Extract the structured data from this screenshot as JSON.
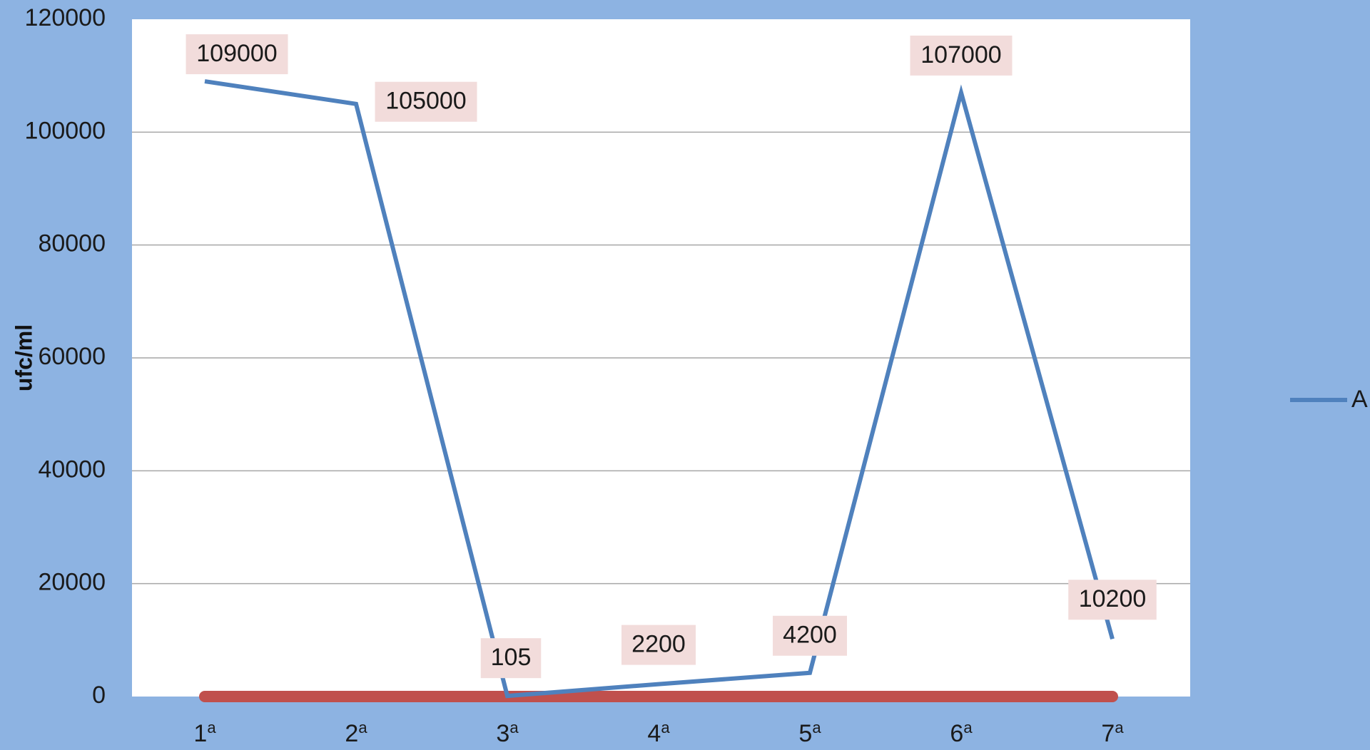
{
  "chart_data": {
    "type": "line",
    "title": "",
    "xlabel": "",
    "ylabel": "ufc/ml",
    "categories": [
      {
        "num": "1",
        "sup": "a"
      },
      {
        "num": "2",
        "sup": "a"
      },
      {
        "num": "3",
        "sup": "a"
      },
      {
        "num": "4",
        "sup": "a"
      },
      {
        "num": "5",
        "sup": "a"
      },
      {
        "num": "6",
        "sup": "a"
      },
      {
        "num": "7",
        "sup": "a"
      }
    ],
    "series": [
      {
        "name": "A",
        "color": "#4f81bd",
        "values": [
          109000,
          105000,
          105,
          2200,
          4200,
          107000,
          10200
        ],
        "data_labels": [
          "109000",
          "105000",
          "105",
          "2200",
          "4200",
          "107000",
          "10200"
        ]
      },
      {
        "color": "#c0504d",
        "values": [
          0,
          0,
          0,
          0,
          0,
          0,
          0
        ]
      }
    ],
    "ylim": [
      0,
      120000
    ],
    "yticks": [
      "0",
      "20000",
      "40000",
      "60000",
      "80000",
      "100000",
      "120000"
    ],
    "grid": true,
    "legend_position": "right",
    "colors": {
      "page_background": "#8db3e2",
      "plot_background": "#ffffff",
      "gridline": "#a6a6a6",
      "data_label_background": "#f2dcdb"
    }
  }
}
